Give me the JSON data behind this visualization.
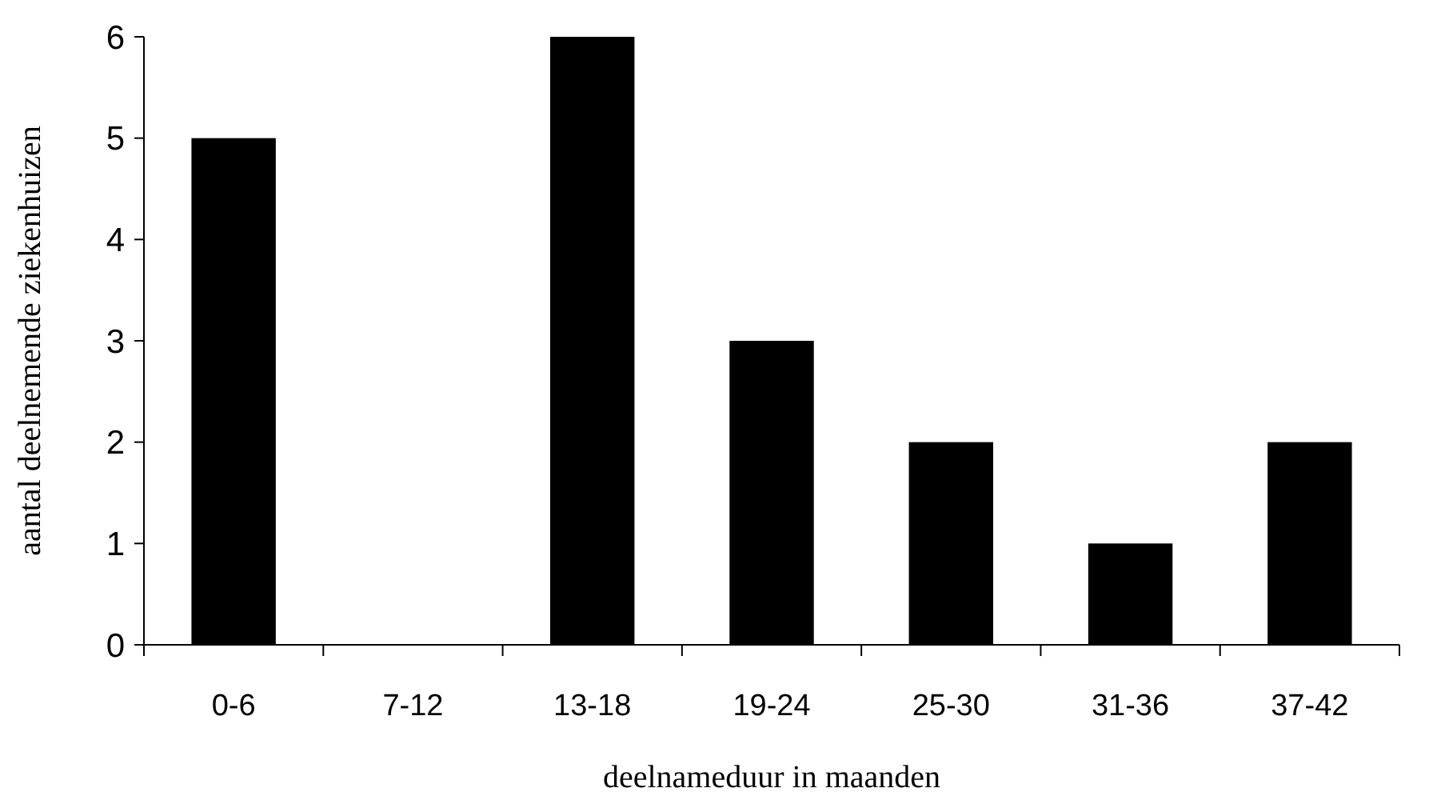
{
  "chart_data": {
    "type": "bar",
    "xlabel": "deelnameduur in maanden",
    "ylabel": "aantal deelnemende ziekenhuizen",
    "categories": [
      "0-6",
      "7-12",
      "13-18",
      "19-24",
      "25-30",
      "31-36",
      "37-42"
    ],
    "values": [
      5,
      0,
      6,
      3,
      2,
      1,
      2
    ],
    "color": "#000000",
    "ylim": [
      0,
      6
    ],
    "yticks": [
      0,
      1,
      2,
      3,
      4,
      5,
      6
    ],
    "grid": false
  }
}
